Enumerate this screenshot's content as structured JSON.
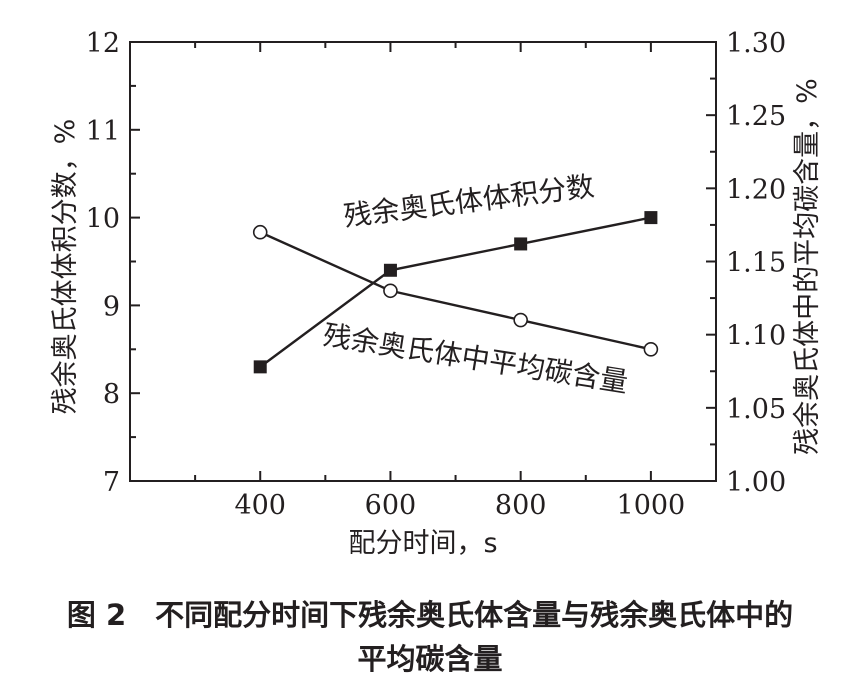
{
  "chart_data": {
    "type": "line",
    "x": [
      400,
      600,
      800,
      1000
    ],
    "xlabel": "配分时间，s",
    "xlim": [
      200,
      1100
    ],
    "xticks": [
      "400",
      "600",
      "800",
      "1000"
    ],
    "ylabel_left": "残余奥氏体体积分数，%",
    "ylim_left": [
      7,
      12
    ],
    "yticks_left": [
      "7",
      "8",
      "9",
      "10",
      "11",
      "12"
    ],
    "ylabel_right": "残余奥氏体中的平均碳含量，%",
    "ylim_right": [
      1.0,
      1.3
    ],
    "yticks_right": [
      "1.00",
      "1.05",
      "1.10",
      "1.15",
      "1.20",
      "1.25",
      "1.30"
    ],
    "series": [
      {
        "name": "残余奥氏体体积分数",
        "axis": "left",
        "marker": "filled-square",
        "values": [
          8.3,
          9.4,
          9.7,
          10.0
        ]
      },
      {
        "name": "残余奥氏体中平均碳含量",
        "axis": "right",
        "marker": "open-circle",
        "values": [
          1.17,
          1.13,
          1.11,
          1.09
        ]
      }
    ],
    "grid": false
  },
  "caption": {
    "line1": "图 2　不同配分时间下残余奥氏体含量与残余奥氏体中的",
    "line2": "平均碳含量"
  }
}
